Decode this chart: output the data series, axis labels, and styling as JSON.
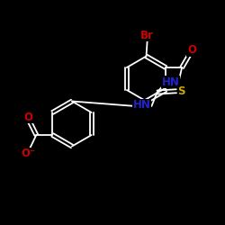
{
  "background_color": "#000000",
  "bond_color": "#ffffff",
  "atom_colors": {
    "Br": "#cc0000",
    "O": "#cc0000",
    "N": "#2222cc",
    "S": "#ccaa00",
    "O_neg": "#cc0000"
  },
  "font_size_atoms": 8.5,
  "fig_size": [
    2.5,
    2.5
  ],
  "dpi": 100,
  "xlim": [
    0,
    10
  ],
  "ylim": [
    0,
    10
  ]
}
